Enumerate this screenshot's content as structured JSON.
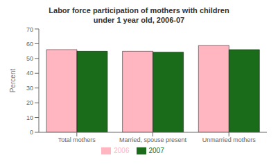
{
  "chart_data": {
    "type": "bar",
    "title": "Labor force participation of mothers with children\nunder 1 year old, 2006-07",
    "categories": [
      "Total mothers",
      "Married, spouse present",
      "Unmarried mothers"
    ],
    "series": [
      {
        "name": "2006",
        "color": "#FFB6C1",
        "values": [
          56.0,
          54.9,
          58.8
        ]
      },
      {
        "name": "2007",
        "color": "#1a6b1a",
        "values": [
          54.9,
          54.3,
          56.0
        ]
      }
    ],
    "ylabel": "Percent",
    "ylim": [
      0,
      70
    ],
    "yticks": [
      0,
      10,
      20,
      30,
      40,
      50,
      60,
      70
    ],
    "grid": false,
    "legend": "bottom"
  }
}
